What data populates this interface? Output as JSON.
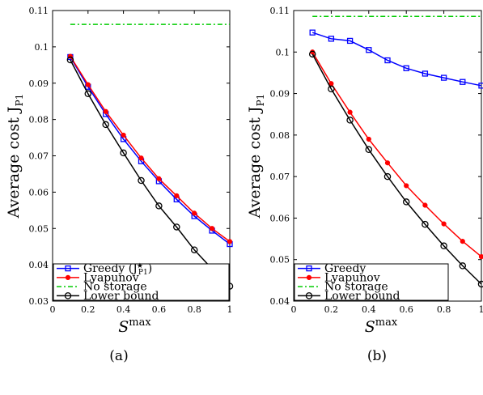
{
  "chart_data": [
    {
      "type": "line",
      "caption": "(a)",
      "ylabel": "Average cost J",
      "ylabel_sub": "P1",
      "xlabel_base": "S",
      "xlabel_sup": "max",
      "xlim": [
        0,
        1
      ],
      "ylim": [
        0.03,
        0.11
      ],
      "xticks": [
        "0",
        "0.2",
        "0.4",
        "0.6",
        "0.8",
        "1"
      ],
      "yticks": [
        "0.03",
        "0.04",
        "0.05",
        "0.06",
        "0.07",
        "0.08",
        "0.09",
        "0.1",
        "0.11"
      ],
      "legend_position": "bottom-left",
      "series": [
        {
          "name": "Greedy (J",
          "name_sup": "★",
          "name_sub": "P1",
          "name_end": ")",
          "color": "#0000ff",
          "marker": "square",
          "dash": "solid",
          "x": [
            0.1,
            0.2,
            0.3,
            0.4,
            0.5,
            0.6,
            0.7,
            0.8,
            0.9,
            1.0
          ],
          "y": [
            0.0972,
            0.089,
            0.0815,
            0.0746,
            0.0685,
            0.063,
            0.058,
            0.0534,
            0.0494,
            0.0457
          ]
        },
        {
          "name": "Lyapunov",
          "color": "#ff0000",
          "marker": "dot",
          "dash": "solid",
          "x": [
            0.1,
            0.2,
            0.3,
            0.4,
            0.5,
            0.6,
            0.7,
            0.8,
            0.9,
            1.0
          ],
          "y": [
            0.0974,
            0.0896,
            0.0822,
            0.0757,
            0.0694,
            0.0637,
            0.059,
            0.0542,
            0.05,
            0.0464
          ]
        },
        {
          "name": "No storage",
          "color": "#00cc00",
          "marker": "none",
          "dash": "dashdot",
          "x": [
            0.1,
            1.0
          ],
          "y": [
            0.1062,
            0.1062
          ]
        },
        {
          "name": "Lower bound",
          "color": "#000000",
          "marker": "circle",
          "dash": "solid",
          "x": [
            0.1,
            0.2,
            0.3,
            0.4,
            0.5,
            0.6,
            0.7,
            0.8,
            0.9,
            1.0
          ],
          "y": [
            0.0964,
            0.0871,
            0.0786,
            0.0708,
            0.0632,
            0.0562,
            0.0504,
            0.0441,
            0.0389,
            0.0341
          ]
        }
      ]
    },
    {
      "type": "line",
      "caption": "(b)",
      "ylabel": "Average cost J",
      "ylabel_sub": "P1",
      "xlabel_base": "S",
      "xlabel_sup": "max",
      "xlim": [
        0,
        1
      ],
      "ylim": [
        0.04,
        0.11
      ],
      "xticks": [
        "0",
        "0.2",
        "0.4",
        "0.6",
        "0.8",
        "1"
      ],
      "yticks": [
        "0.04",
        "0.05",
        "0.06",
        "0.07",
        "0.08",
        "0.09",
        "0.1",
        "0.11"
      ],
      "legend_position": "bottom-left",
      "series": [
        {
          "name": "Greedy",
          "color": "#0000ff",
          "marker": "square",
          "dash": "solid",
          "x": [
            0.1,
            0.2,
            0.3,
            0.4,
            0.5,
            0.6,
            0.7,
            0.8,
            0.9,
            1.0
          ],
          "y": [
            0.1047,
            0.1032,
            0.1027,
            0.1005,
            0.098,
            0.0961,
            0.0948,
            0.0938,
            0.0928,
            0.0919
          ]
        },
        {
          "name": "Lyapunov",
          "color": "#ff0000",
          "marker": "dot",
          "dash": "solid",
          "x": [
            0.1,
            0.2,
            0.3,
            0.4,
            0.5,
            0.6,
            0.7,
            0.8,
            0.9,
            1.0
          ],
          "y": [
            0.1,
            0.0924,
            0.0855,
            0.079,
            0.0733,
            0.0678,
            0.0631,
            0.0586,
            0.0544,
            0.0507
          ]
        },
        {
          "name": "No storage",
          "color": "#00cc00",
          "marker": "none",
          "dash": "dashdot",
          "x": [
            0.1,
            1.0
          ],
          "y": [
            0.1086,
            0.1086
          ]
        },
        {
          "name": "Lower bound",
          "color": "#000000",
          "marker": "circle",
          "dash": "solid",
          "x": [
            0.1,
            0.2,
            0.3,
            0.4,
            0.5,
            0.6,
            0.7,
            0.8,
            0.9,
            1.0
          ],
          "y": [
            0.0995,
            0.0911,
            0.0836,
            0.0765,
            0.07,
            0.0639,
            0.0585,
            0.0533,
            0.0485,
            0.0441
          ]
        }
      ]
    }
  ]
}
